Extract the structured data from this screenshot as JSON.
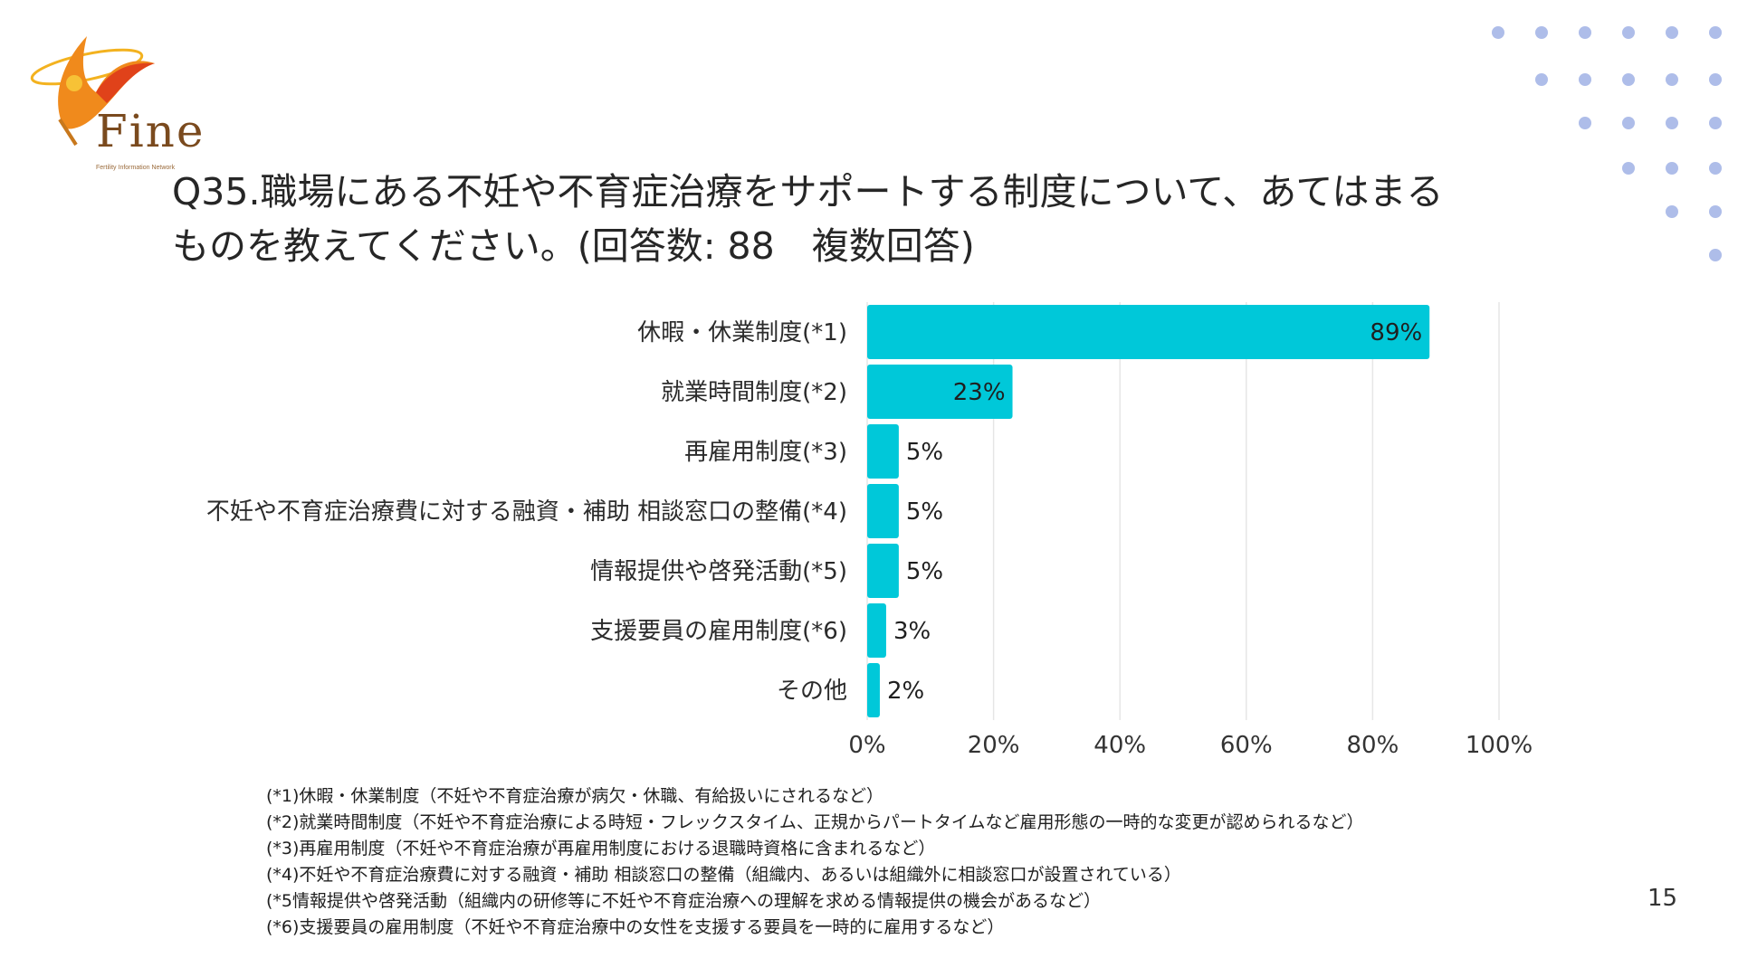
{
  "logo": {
    "word": "Fine",
    "subtitle": "Fertility Information Network",
    "colors": {
      "flame": "#f08a1c",
      "flame_dark": "#e0421a",
      "ring": "#f3b21f"
    }
  },
  "title": {
    "line1": "Q35.職場にある不妊や不育症治療をサポートする制度について、あてはまる",
    "line2": "ものを教えてください。(回答数: 88　複数回答)"
  },
  "chart_data": {
    "type": "bar",
    "orientation": "horizontal",
    "categories": [
      "休暇・休業制度(*1)",
      "就業時間制度(*2)",
      "再雇用制度(*3)",
      "不妊や不育症治療費に対する融資・補助 相談窓口の整備(*4)",
      "情報提供や啓発活動(*5)",
      "支援要員の雇用制度(*6)",
      "その他"
    ],
    "values": [
      89,
      23,
      5,
      5,
      5,
      3,
      2
    ],
    "value_labels": [
      "89%",
      "23%",
      "5%",
      "5%",
      "5%",
      "3%",
      "2%"
    ],
    "xlim": [
      0,
      100
    ],
    "xticks": [
      0,
      20,
      40,
      60,
      80,
      100
    ],
    "xtick_labels": [
      "0%",
      "20%",
      "40%",
      "60%",
      "80%",
      "100%"
    ],
    "grid": true,
    "legend": "none",
    "bar_color": "#00c8d9",
    "grid_color": "#e6e6e6"
  },
  "footnotes": [
    "(*1)休暇・休業制度（不妊や不育症治療が病欠・休職、有給扱いにされるなど）",
    "(*2)就業時間制度（不妊や不育症治療による時短・フレックスタイム、正規からパートタイムなど雇用形態の一時的な変更が認められるなど）",
    "(*3)再雇用制度（不妊や不育症治療が再雇用制度における退職時資格に含まれるなど）",
    "(*4)不妊や不育症治療費に対する融資・補助 相談窓口の整備（組織内、あるいは組織外に相談窓口が設置されている）",
    "(*5情報提供や啓発活動（組織内の研修等に不妊や不育症治療への理解を求める情報提供の機会があるなど）",
    "(*6)支援要員の雇用制度（不妊や不育症治療中の女性を支援する要員を一時的に雇用するなど）"
  ],
  "page_number": "15",
  "decor": {
    "dot_color": "#aebde9"
  }
}
